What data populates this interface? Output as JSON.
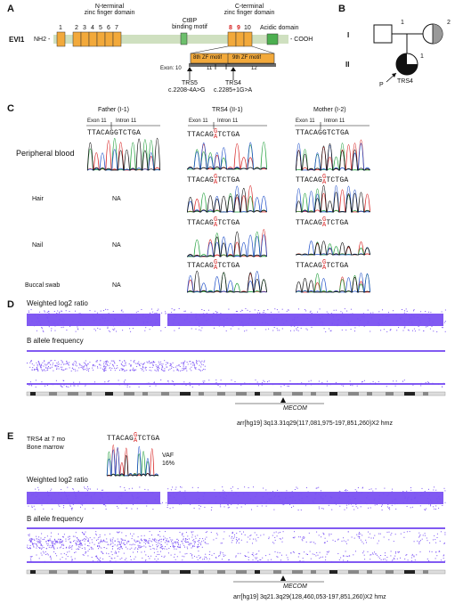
{
  "panels": {
    "a": "A",
    "b": "B",
    "c": "C",
    "d": "D",
    "e": "E"
  },
  "panel_a": {
    "protein_name": "EVI1",
    "nh2": "NH2 -",
    "cooh": "- COOH",
    "n_terminal_label_1": "N-terminal",
    "n_terminal_label_2": "zinc finger domain",
    "ctbp_label_1": "CtBP",
    "ctbp_label_2": "binding motif",
    "c_terminal_label_1": "C-terminal",
    "c_terminal_label_2": "zinc finger domain",
    "acidic_label": "Acidic domain",
    "zf_numbers": [
      "1",
      "2",
      "3",
      "4",
      "5",
      "6",
      "7"
    ],
    "c_zf_numbers": [
      "8",
      "9",
      "10"
    ],
    "motif_8": "8th ZF motif",
    "motif_9": "9th ZF motif",
    "exon_label": "Exon: 10",
    "exon_11": "11",
    "exon_12": "12",
    "trs5": "TRS5",
    "trs5_var": "c.2208-4A>G",
    "trs4": "TRS4",
    "trs4_var": "c.2285+1G>A",
    "colors": {
      "backbone": "#cfe0c0",
      "domain": "#f2a93b",
      "ctbp": "#6cbf6c",
      "acidic": "#4caf50",
      "red": "#d62020"
    }
  },
  "panel_b": {
    "gen_i": "I",
    "gen_ii": "II",
    "i1": "1",
    "i2": "2",
    "ii1": "1",
    "proband": "P",
    "proband_name": "TRS4"
  },
  "panel_c": {
    "father": "Father (I-1)",
    "trs4": "TRS4 (II-1)",
    "mother": "Mother (I-2)",
    "exon11": "Exon 11",
    "intron11": "Intron 11",
    "seq_normal": "TTACAGGTCTGA",
    "seq_pre": "TTACAG",
    "seq_g": "G",
    "seq_a": "A",
    "seq_post": "TCTGA",
    "rows": [
      "Peripheral blood",
      "Hair",
      "Nail",
      "Buccal swab"
    ],
    "na": "NA"
  },
  "panel_d": {
    "log2_label": "Weighted log2 ratio",
    "baf_label": "B allele frequency",
    "gene": "MECOM",
    "arr": "arr[hg19] 3q13.31q29(117,081,975-197,851,260)X2 hmz"
  },
  "panel_e": {
    "title_1": "TRS4 at 7 mo",
    "title_2": "Bone marrow",
    "vaf_1": "VAF",
    "vaf_2": "16%",
    "log2_label": "Weighted log2 ratio",
    "baf_label": "B allele frequency",
    "gene": "MECOM",
    "arr": "arr[hg19] 3q21.3q29(128,460,053-197,851,260)X2 hmz"
  }
}
